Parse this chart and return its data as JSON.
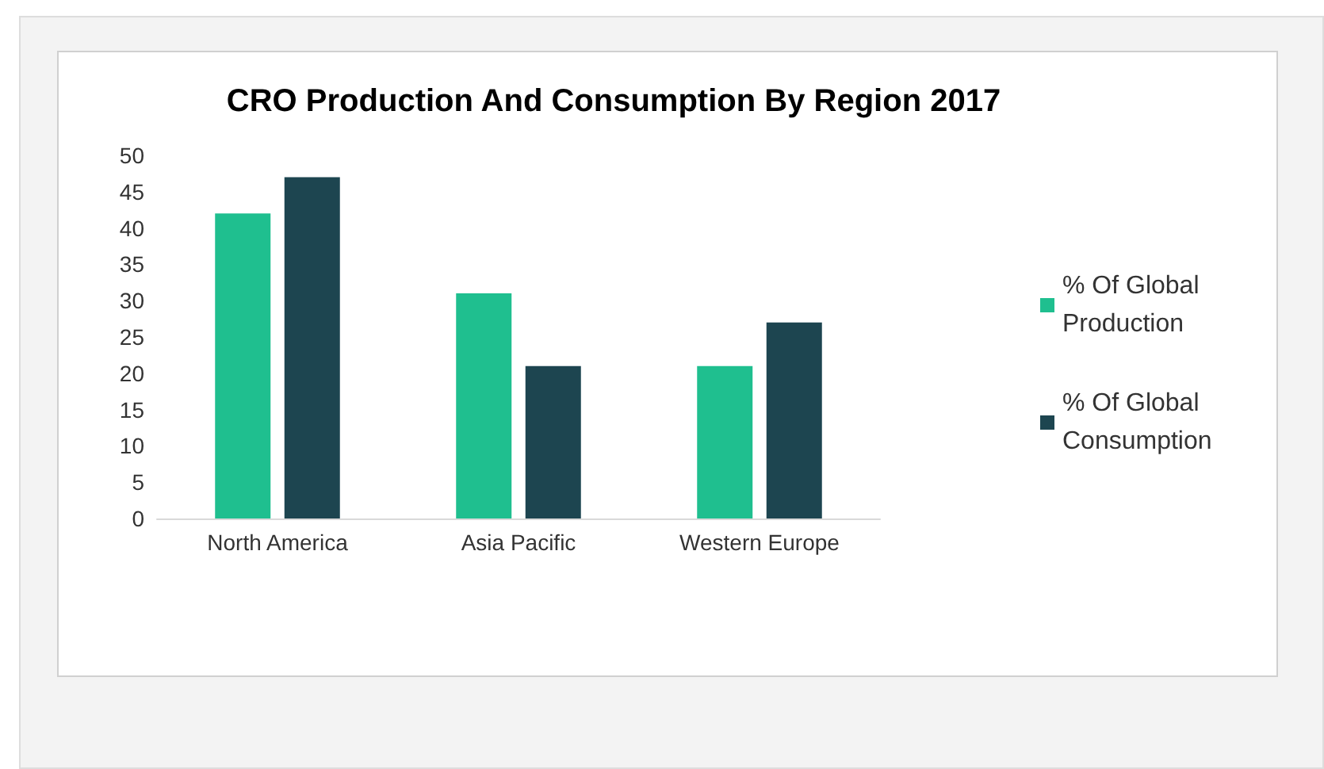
{
  "chart_data": {
    "type": "bar",
    "title": "CRO Production And Consumption By Region 2017",
    "categories": [
      "North America",
      "Asia Pacific",
      "Western Europe"
    ],
    "series": [
      {
        "name": "% Of Global Production",
        "color": "#1fbf8f",
        "values": [
          42,
          31,
          21
        ]
      },
      {
        "name": "% Of Global Consumption",
        "color": "#1d4550",
        "values": [
          47,
          21,
          27
        ]
      }
    ],
    "ylim": [
      0,
      50
    ],
    "yticks": [
      0,
      5,
      10,
      15,
      20,
      25,
      30,
      35,
      40,
      45,
      50
    ],
    "grid": false,
    "legend": "right"
  }
}
